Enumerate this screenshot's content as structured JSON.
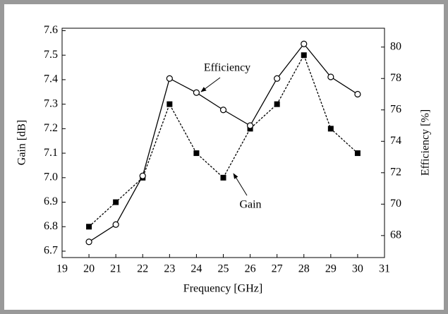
{
  "chart_data": {
    "type": "line",
    "x_label": "Frequency [GHz]",
    "y_label": "Gain [dB]",
    "y2_label": "Efficiency [%]",
    "x": [
      20,
      21,
      22,
      23,
      24,
      25,
      26,
      27,
      28,
      29,
      30
    ],
    "xlim": [
      19,
      31
    ],
    "xticks": [
      19,
      20,
      21,
      22,
      23,
      24,
      25,
      26,
      27,
      28,
      29,
      30,
      31
    ],
    "ylim": [
      6.674,
      7.61
    ],
    "yticks": [
      {
        "value": 6.7,
        "label": "6.7"
      },
      {
        "value": 6.8,
        "label": "6.8"
      },
      {
        "value": 6.9,
        "label": "6.9"
      },
      {
        "value": 7.0,
        "label": "7.0"
      },
      {
        "value": 7.1,
        "label": "7.1"
      },
      {
        "value": 7.2,
        "label": "7.2"
      },
      {
        "value": 7.3,
        "label": "7.3"
      },
      {
        "value": 7.4,
        "label": "7.4"
      },
      {
        "value": 7.5,
        "label": "7.5"
      },
      {
        "value": 7.6,
        "label": "7.6"
      }
    ],
    "y2lim": [
      66.6,
      81.2
    ],
    "y2ticks": [
      68,
      70,
      72,
      74,
      76,
      78,
      80
    ],
    "grid": false,
    "series": [
      {
        "name": "Gain",
        "color": "#000000",
        "linestyle": "dotted",
        "marker": "square",
        "axis": "y",
        "values": [
          6.8,
          6.9,
          7.0,
          7.3,
          7.1,
          7.0,
          7.2,
          7.3,
          7.5,
          7.2,
          7.1
        ]
      },
      {
        "name": "Efficiency",
        "color": "#000000",
        "linestyle": "solid",
        "marker": "open-circle",
        "axis": "y2",
        "values": [
          67.6,
          68.7,
          71.8,
          78.0,
          77.1,
          76.0,
          75.0,
          78.0,
          80.2,
          78.1,
          77.0
        ]
      }
    ],
    "annotations": [
      {
        "text": "Efficiency"
      },
      {
        "text": "Gain"
      }
    ]
  }
}
